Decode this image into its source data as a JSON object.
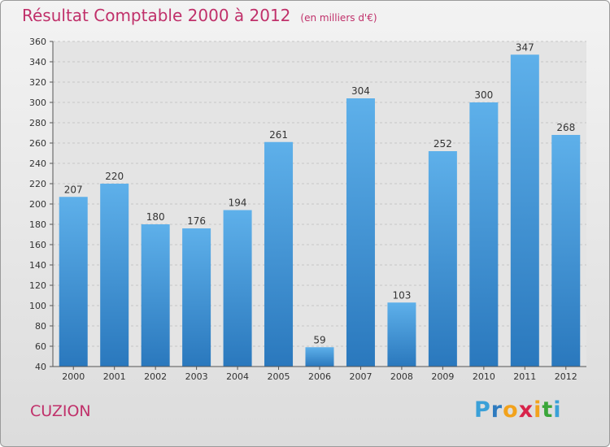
{
  "title": "Résultat Comptable 2000 à 2012",
  "subtitle": "(en milliers d'€)",
  "commune": "CUZION",
  "logo": {
    "letters": [
      "P",
      "r",
      "o",
      "x",
      "i",
      "t",
      "i"
    ],
    "colors": [
      "#3aa0d8",
      "#2e7bbf",
      "#f2a21c",
      "#d8234a",
      "#f2a21c",
      "#3aa63a",
      "#3aa0d8"
    ]
  },
  "chart_data": {
    "type": "bar",
    "categories": [
      "2000",
      "2001",
      "2002",
      "2003",
      "2004",
      "2005",
      "2006",
      "2007",
      "2008",
      "2009",
      "2010",
      "2011",
      "2012"
    ],
    "values": [
      207,
      220,
      180,
      176,
      194,
      261,
      59,
      304,
      103,
      252,
      300,
      347,
      268
    ],
    "data_labels": [
      "207",
      "220",
      "180",
      "176",
      "194",
      "261",
      "59",
      "304",
      "103",
      "252",
      "300",
      "347",
      "268"
    ],
    "ylim": [
      40,
      360
    ],
    "yticks": [
      "40",
      "60",
      "80",
      "100",
      "120",
      "140",
      "160",
      "180",
      "200",
      "220",
      "240",
      "260",
      "280",
      "300",
      "320",
      "340",
      "360"
    ],
    "grid": true,
    "bar_color": "#4a9fdf"
  }
}
